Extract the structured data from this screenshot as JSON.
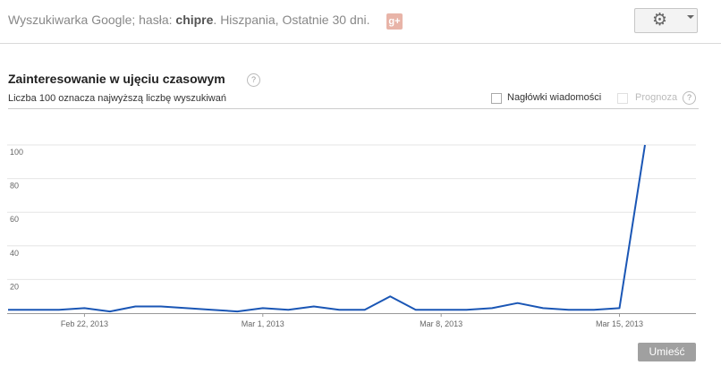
{
  "header": {
    "query_prefix": "Wyszukiwarka Google; hasła:",
    "query_term": "chipre",
    "query_suffix": ". Hiszpania, Ostatnie 30 dni.",
    "gplus_label": "g+"
  },
  "section": {
    "title": "Zainteresowanie w ujęciu czasowym",
    "subtitle": "Liczba 100 oznacza najwyższą liczbę wyszukiwań",
    "help_symbol": "?"
  },
  "options": {
    "news_label": "Nagłówki wiadomości",
    "forecast_label": "Prognoza"
  },
  "actions": {
    "embed_label": "Umieść"
  },
  "chart_data": {
    "type": "line",
    "ylim": [
      0,
      100
    ],
    "yticks": [
      20,
      40,
      60,
      80,
      100
    ],
    "x_labels": [
      {
        "index": 3,
        "label": "Feb 22, 2013"
      },
      {
        "index": 10,
        "label": "Mar 1, 2013"
      },
      {
        "index": 17,
        "label": "Mar 8, 2013"
      },
      {
        "index": 24,
        "label": "Mar 15, 2013"
      }
    ],
    "series": [
      {
        "color": "#1a56b5",
        "values": [
          2,
          2,
          2,
          3,
          1,
          4,
          4,
          3,
          2,
          1,
          3,
          2,
          4,
          2,
          2,
          10,
          2,
          2,
          2,
          3,
          6,
          3,
          2,
          2,
          3,
          100
        ]
      }
    ]
  }
}
